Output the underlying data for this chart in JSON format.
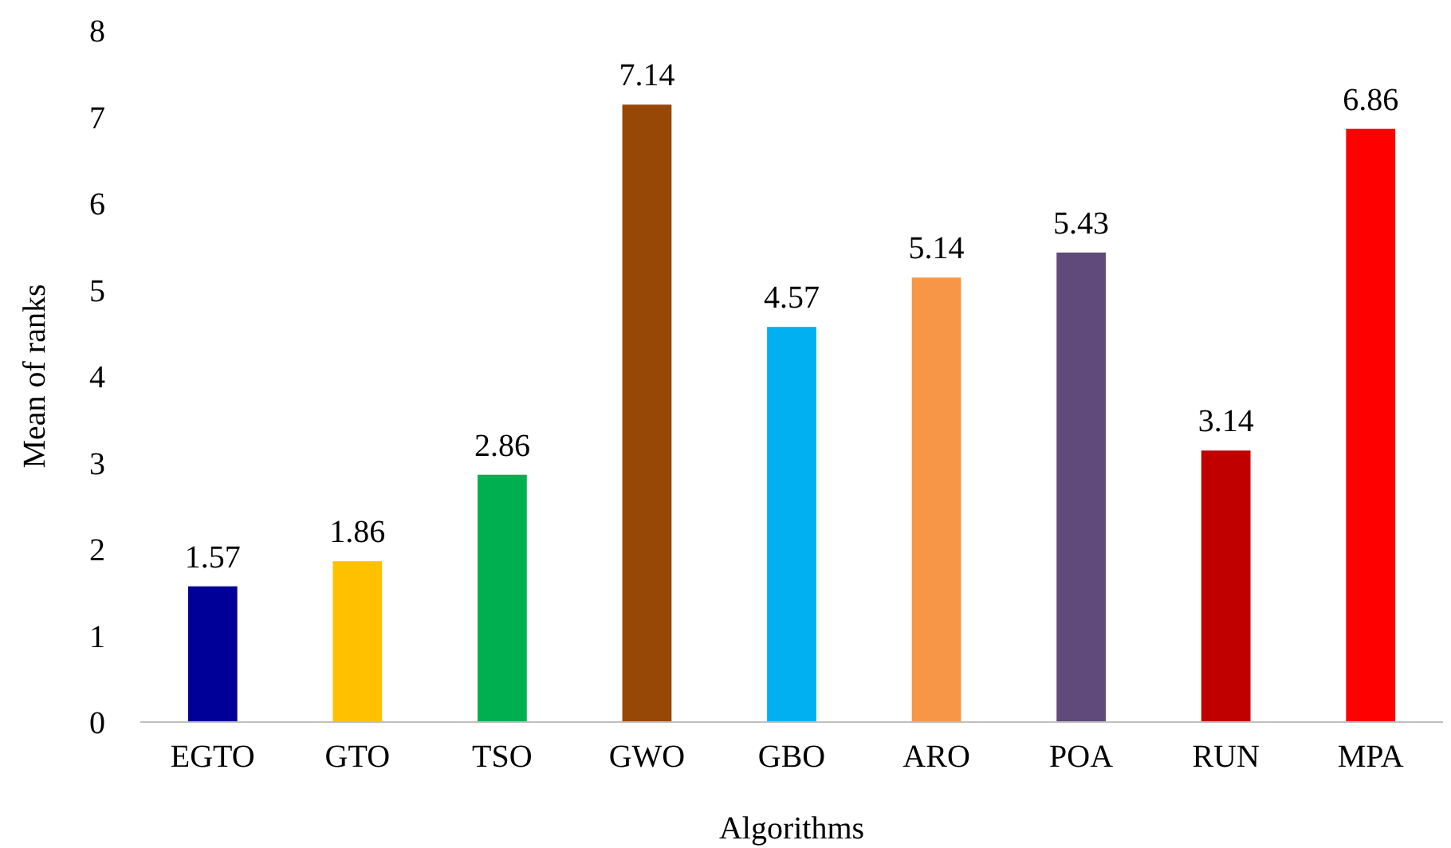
{
  "chart_data": {
    "type": "bar",
    "xlabel": "Algorithms",
    "ylabel": "Mean of ranks",
    "categories": [
      "EGTO",
      "GTO",
      "TSO",
      "GWO",
      "GBO",
      "ARO",
      "POA",
      "RUN",
      "MPA"
    ],
    "values": [
      1.57,
      1.86,
      2.86,
      7.14,
      4.57,
      5.14,
      5.43,
      3.14,
      6.86
    ],
    "colors": [
      "#000099",
      "#ffc000",
      "#00b050",
      "#974706",
      "#00b0f0",
      "#f79646",
      "#604a7b",
      "#c00000",
      "#ff0000"
    ],
    "ylim": [
      0,
      8
    ],
    "yticks": [
      0,
      1,
      2,
      3,
      4,
      5,
      6,
      7,
      8
    ],
    "data_labels": true,
    "grid": false
  }
}
